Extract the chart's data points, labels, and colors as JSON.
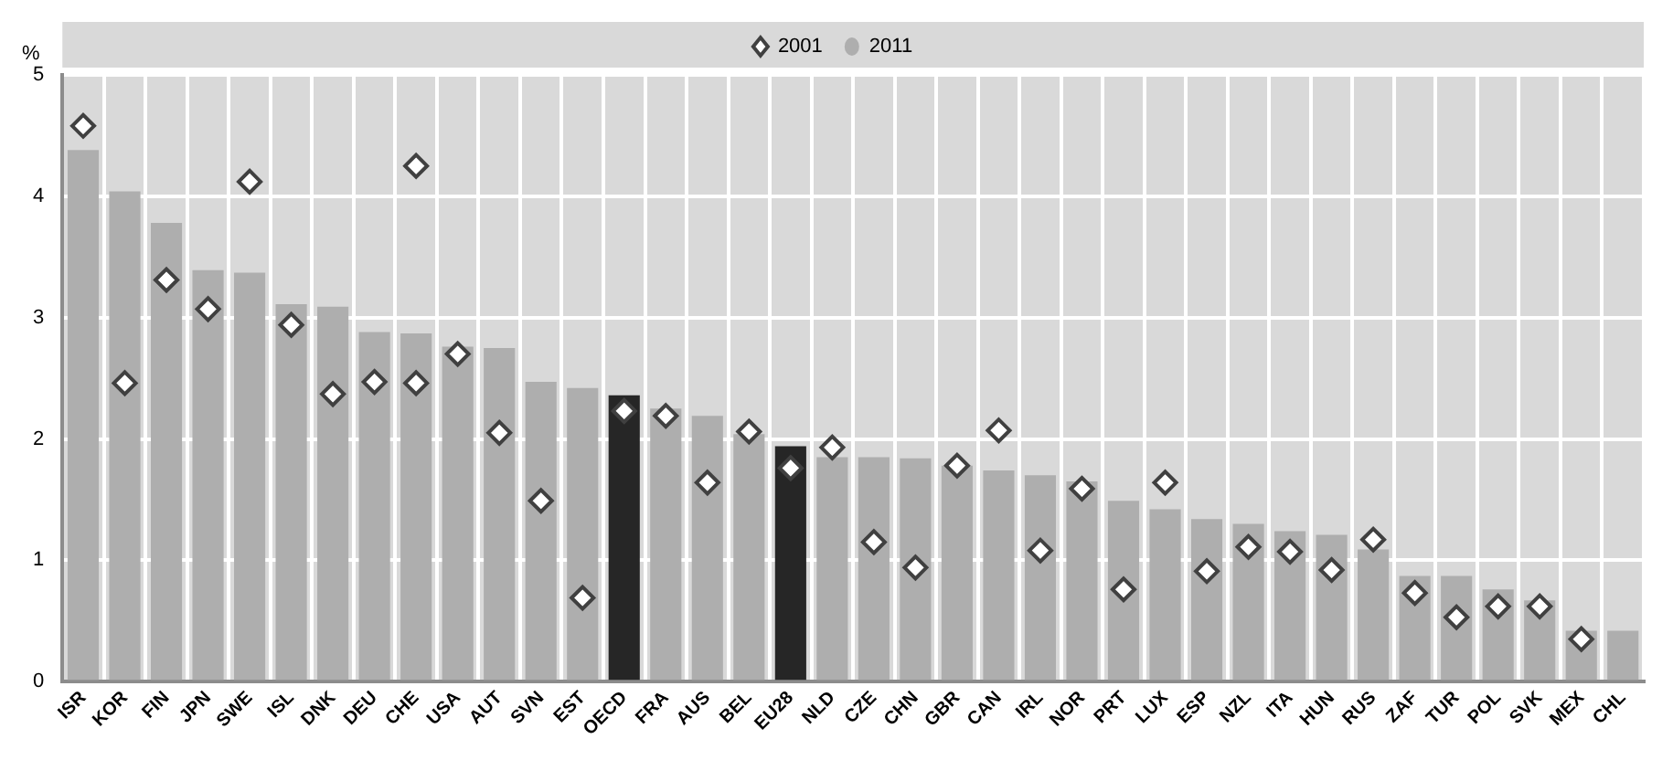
{
  "chart_data": {
    "type": "bar",
    "ylabel": "%",
    "categories": [
      "ISR",
      "KOR",
      "FIN",
      "JPN",
      "SWE",
      "ISL",
      "DNK",
      "DEU",
      "CHE",
      "USA",
      "AUT",
      "SVN",
      "EST",
      "OECD",
      "FRA",
      "AUS",
      "BEL",
      "EU28",
      "NLD",
      "CZE",
      "CHN",
      "GBR",
      "CAN",
      "IRL",
      "NOR",
      "PRT",
      "LUX",
      "ESP",
      "NZL",
      "ITA",
      "HUN",
      "RUS",
      "ZAF",
      "TUR",
      "POL",
      "SVK",
      "MEX",
      "CHL"
    ],
    "series": [
      {
        "name": "2011",
        "color": "#aeaeae",
        "colors": [
          "#aeaeae",
          "#aeaeae",
          "#aeaeae",
          "#aeaeae",
          "#aeaeae",
          "#aeaeae",
          "#aeaeae",
          "#aeaeae",
          "#aeaeae",
          "#aeaeae",
          "#aeaeae",
          "#aeaeae",
          "#aeaeae",
          "#262626",
          "#aeaeae",
          "#aeaeae",
          "#aeaeae",
          "#262626",
          "#aeaeae",
          "#aeaeae",
          "#aeaeae",
          "#aeaeae",
          "#aeaeae",
          "#aeaeae",
          "#aeaeae",
          "#aeaeae",
          "#aeaeae",
          "#aeaeae",
          "#aeaeae",
          "#aeaeae",
          "#aeaeae",
          "#aeaeae",
          "#aeaeae",
          "#aeaeae",
          "#aeaeae",
          "#aeaeae",
          "#aeaeae",
          "#aeaeae"
        ],
        "values": [
          4.38,
          4.04,
          3.78,
          3.39,
          3.37,
          3.11,
          3.09,
          2.88,
          2.87,
          2.76,
          2.75,
          2.47,
          2.42,
          2.36,
          2.25,
          2.19,
          2.04,
          1.94,
          1.85,
          1.85,
          1.84,
          1.78,
          1.74,
          1.7,
          1.65,
          1.49,
          1.42,
          1.34,
          1.3,
          1.24,
          1.21,
          1.09,
          0.87,
          0.87,
          0.76,
          0.67,
          0.42,
          0.42
        ]
      },
      {
        "name": "2001",
        "type": "scatter",
        "color": "#404040",
        "values": [
          4.58,
          2.46,
          3.31,
          3.07,
          4.12,
          2.94,
          2.37,
          2.47,
          2.46,
          2.7,
          2.05,
          1.49,
          0.69,
          2.23,
          2.19,
          1.64,
          2.06,
          1.76,
          1.93,
          1.15,
          0.94,
          1.78,
          2.07,
          1.08,
          1.59,
          0.76,
          1.64,
          0.91,
          1.11,
          1.07,
          0.92,
          1.17,
          0.73,
          0.53,
          0.62,
          0.62,
          0.35,
          null
        ]
      },
      {
        "type": "scatter",
        "color": "#404040",
        "values": [
          null,
          null,
          null,
          null,
          null,
          null,
          null,
          null,
          4.25,
          null,
          null,
          null,
          null,
          null,
          null,
          null,
          null,
          null,
          null,
          null,
          null,
          null,
          null,
          null,
          null,
          null,
          null,
          null,
          null,
          null,
          null,
          null,
          null,
          null,
          null,
          null,
          null,
          null
        ]
      }
    ],
    "ylim": [
      0,
      5
    ],
    "yticks": [
      0,
      1,
      2,
      3,
      4,
      5
    ],
    "grid": true,
    "legend": "top",
    "marker": "diamond"
  }
}
